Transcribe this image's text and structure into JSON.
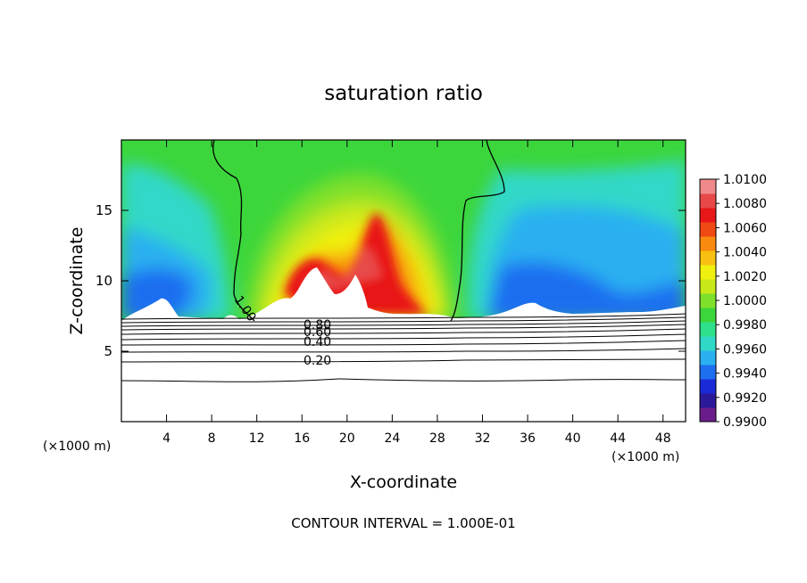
{
  "chart_data": {
    "type": "heatmap",
    "title": "saturation ratio",
    "xlabel": "X-coordinate",
    "ylabel": "Z-coordinate",
    "x_units": "(×1000 m)",
    "y_units": "(×1000 m)",
    "xlim": [
      0,
      50
    ],
    "ylim": [
      0,
      20
    ],
    "x_ticks": [
      4,
      8,
      12,
      16,
      20,
      24,
      28,
      32,
      36,
      40,
      44,
      48
    ],
    "x_tick_labels": [
      "4",
      "8",
      "12",
      "16",
      "20",
      "24",
      "28",
      "32",
      "36",
      "40",
      "44",
      "48"
    ],
    "y_ticks": [
      5,
      10,
      15
    ],
    "y_tick_labels": [
      "5",
      "10",
      "15"
    ],
    "colorbar": {
      "min": 0.99,
      "max": 1.01,
      "labels": [
        "1.0100",
        "1.0080",
        "1.0060",
        "1.0040",
        "1.0020",
        "1.0000",
        "0.9980",
        "0.9960",
        "0.9940",
        "0.9920",
        "0.9900"
      ],
      "colors": [
        "#6a1d8a",
        "#2a1a9a",
        "#1a2ad8",
        "#1e6ef0",
        "#2ab0f0",
        "#30d8c8",
        "#2ee08a",
        "#3cd63c",
        "#7ee02a",
        "#c8e81a",
        "#f0f010",
        "#f8c010",
        "#f88a10",
        "#f04a14",
        "#e81818",
        "#e84848",
        "#f08a8a"
      ]
    },
    "contour_labels": [
      "1.00",
      "0.80",
      "0.60",
      "0.40",
      "0.20"
    ],
    "contour_levels": [
      1.0,
      0.9,
      0.8,
      0.7,
      0.6,
      0.5,
      0.4,
      0.3,
      0.2,
      0.1
    ],
    "footer": "CONTOUR INTERVAL = 1.000E-01",
    "grid": false
  }
}
